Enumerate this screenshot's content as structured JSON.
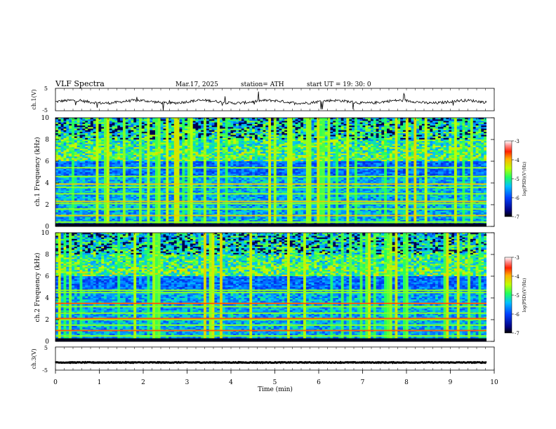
{
  "header": {
    "title": "VLF  Spectra",
    "date": "Mar.17, 2025",
    "station": "station= ATH",
    "start": "start  UT  =   19: 30: 0"
  },
  "chart_data": [
    {
      "type": "line",
      "ylabel": "ch.1(V)",
      "ylim": [
        -5,
        5
      ],
      "yticks": [
        "5",
        "-5"
      ],
      "xlim": [
        0,
        10
      ],
      "description_series": "waveform near -1 V with spikes",
      "baseline": -1
    },
    {
      "type": "heatmap",
      "ylabel": "ch.1  Frequency  (kHz)",
      "ylim": [
        0,
        10
      ],
      "yticks": [
        "0",
        "2",
        "4",
        "6",
        "8",
        "10"
      ],
      "xlim": [
        0,
        10
      ],
      "colorbar": {
        "label": "log(PSD)(V²/Hz)",
        "range": [
          -7,
          -3
        ],
        "ticks": [
          "-3",
          "-4",
          "-5",
          "-6",
          "-7"
        ]
      },
      "lines_khz": [
        0.4,
        1.0,
        1.6,
        2.1,
        2.3,
        3.0,
        3.6,
        3.9,
        4.6,
        5.4
      ]
    },
    {
      "type": "heatmap",
      "ylabel": "ch.2  Frequency  (kHz)",
      "ylim": [
        0,
        10
      ],
      "yticks": [
        "0",
        "2",
        "4",
        "6",
        "8",
        "10"
      ],
      "xlim": [
        0,
        10
      ],
      "colorbar": {
        "label": "log(PSD)(V²/Hz)",
        "range": [
          -7,
          -3
        ],
        "ticks": [
          "-3",
          "-4",
          "-5",
          "-6",
          "-7"
        ]
      },
      "lines_khz": [
        0.5,
        1.0,
        1.5,
        2.0,
        2.1,
        2.6,
        3.2,
        3.5,
        4.5,
        4.7
      ]
    },
    {
      "type": "line",
      "ylabel": "ch.3(V)",
      "ylim": [
        -5,
        5
      ],
      "yticks": [
        "5",
        "-5"
      ],
      "xlim": [
        0,
        10
      ],
      "baseline": -1.7
    }
  ],
  "xaxis": {
    "label": "Time  (min)",
    "ticks": [
      "0",
      "1",
      "2",
      "3",
      "4",
      "5",
      "6",
      "7",
      "8",
      "9",
      "10"
    ]
  }
}
